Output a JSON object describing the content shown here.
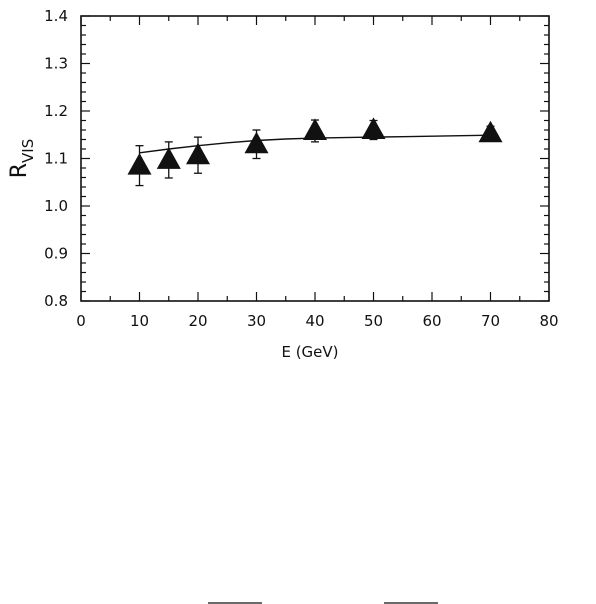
{
  "chart_data": {
    "type": "scatter",
    "xlabel": "E (GeV)",
    "ylabel_main": "R",
    "ylabel_sub": "VIS",
    "xlim": [
      0,
      80
    ],
    "ylim": [
      0.8,
      1.4
    ],
    "x_ticks": [
      0,
      10,
      20,
      30,
      40,
      50,
      60,
      70,
      80
    ],
    "x_tick_labels": [
      "0",
      "10",
      "20",
      "30",
      "40",
      "50",
      "60",
      "70",
      "80"
    ],
    "y_ticks": [
      0.8,
      0.9,
      1.0,
      1.1,
      1.2,
      1.3,
      1.4
    ],
    "y_tick_labels": [
      "0.8",
      "0.9",
      "1.0",
      "1.1",
      "1.2",
      "1.3",
      "1.4"
    ],
    "grid": false,
    "marker": "filled-triangle",
    "series": [
      {
        "points": [
          {
            "x": 10,
            "y": 1.085,
            "err": 0.042
          },
          {
            "x": 15,
            "y": 1.097,
            "err": 0.038
          },
          {
            "x": 20,
            "y": 1.107,
            "err": 0.038
          },
          {
            "x": 30,
            "y": 1.13,
            "err": 0.03
          },
          {
            "x": 40,
            "y": 1.158,
            "err": 0.023
          },
          {
            "x": 50,
            "y": 1.16,
            "err": 0.02
          },
          {
            "x": 70,
            "y": 1.153,
            "err": 0.015
          }
        ]
      }
    ],
    "fit_curve": {
      "x": [
        10,
        15,
        20,
        25,
        30,
        35,
        40,
        45,
        50,
        55,
        60,
        65,
        70
      ],
      "y": [
        1.112,
        1.12,
        1.127,
        1.133,
        1.138,
        1.141,
        1.143,
        1.144,
        1.145,
        1.146,
        1.147,
        1.148,
        1.149
      ]
    }
  }
}
